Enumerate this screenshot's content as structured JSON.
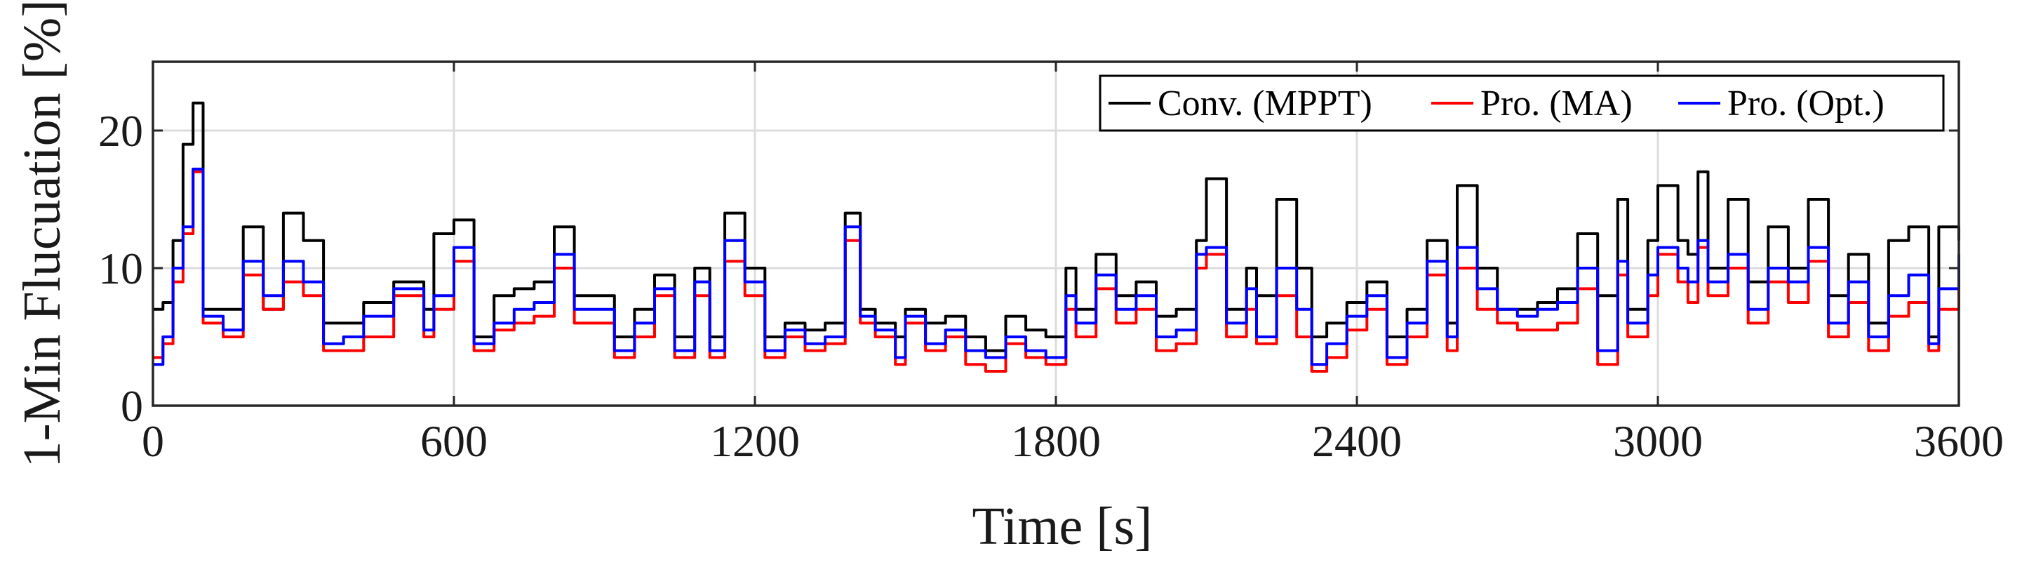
{
  "chart_data": {
    "type": "line",
    "title": "",
    "xlabel": "Time [s]",
    "ylabel": "1-Min Flucuation [%]",
    "xlim": [
      0,
      3600
    ],
    "ylim": [
      0,
      25
    ],
    "xticks": [
      0,
      600,
      1200,
      1800,
      2400,
      3000,
      3600
    ],
    "xtick_labels": [
      "0",
      "600",
      "1200",
      "1800",
      "2400",
      "3000",
      "3600"
    ],
    "yticks": [
      0,
      10,
      20
    ],
    "ytick_labels": [
      "0",
      "10",
      "20"
    ],
    "grid": true,
    "legend_position": "top-right",
    "x": [
      0,
      20,
      40,
      60,
      80,
      100,
      140,
      180,
      220,
      260,
      300,
      340,
      380,
      420,
      480,
      540,
      560,
      600,
      640,
      680,
      720,
      760,
      800,
      840,
      880,
      920,
      960,
      1000,
      1040,
      1080,
      1110,
      1140,
      1180,
      1220,
      1260,
      1300,
      1340,
      1380,
      1410,
      1440,
      1480,
      1500,
      1540,
      1580,
      1620,
      1660,
      1700,
      1740,
      1780,
      1820,
      1840,
      1880,
      1920,
      1960,
      2000,
      2040,
      2080,
      2100,
      2140,
      2180,
      2200,
      2240,
      2280,
      2310,
      2340,
      2380,
      2420,
      2460,
      2500,
      2540,
      2580,
      2600,
      2640,
      2680,
      2720,
      2760,
      2800,
      2840,
      2880,
      2920,
      2940,
      2980,
      3000,
      3040,
      3060,
      3080,
      3100,
      3140,
      3180,
      3220,
      3260,
      3300,
      3340,
      3380,
      3420,
      3460,
      3500,
      3540,
      3560,
      3600
    ],
    "series": [
      {
        "name": "Conv. (MPPT)",
        "color": "#000000",
        "values": [
          7,
          7.5,
          12,
          19,
          22,
          7,
          7,
          13,
          7,
          14,
          12,
          6,
          6,
          7.5,
          9,
          7,
          12.5,
          13.5,
          5,
          8,
          8.5,
          9,
          13,
          8,
          8,
          5,
          7,
          9.5,
          5,
          10,
          5,
          14,
          10,
          5,
          6,
          5.5,
          6,
          14,
          7,
          6,
          5,
          7,
          6,
          6.5,
          5,
          4,
          6.5,
          5.5,
          5,
          10,
          7,
          11,
          8,
          9,
          6.5,
          7,
          12,
          16.5,
          7,
          10,
          8,
          15,
          10,
          5,
          6,
          7.5,
          9,
          5,
          7,
          12,
          6,
          16,
          10,
          7,
          7,
          7.5,
          8.5,
          12.5,
          8,
          15,
          7,
          12,
          16,
          12,
          11,
          17,
          10,
          15,
          9,
          13,
          10,
          15,
          8,
          11,
          6,
          12,
          13,
          5,
          13,
          12
        ]
      },
      {
        "name": "Pro. (MA)",
        "color": "#ff0000",
        "values": [
          3.5,
          4.5,
          9,
          12.5,
          17,
          6,
          5,
          9.5,
          7,
          9,
          8,
          4,
          4,
          5,
          8,
          5,
          7,
          10.5,
          4,
          5.5,
          6,
          6.5,
          10,
          6,
          6,
          3.5,
          5,
          8,
          3.5,
          8,
          3.5,
          10.5,
          8,
          3.5,
          5,
          4,
          4.5,
          12,
          6,
          5,
          3,
          6,
          4,
          5,
          3,
          2.5,
          4.5,
          3.5,
          3,
          7,
          5,
          8.5,
          6,
          7,
          4,
          4.5,
          10,
          11,
          5,
          7,
          4.5,
          8,
          5,
          2.5,
          3.5,
          5.5,
          7,
          3,
          5,
          9.5,
          4,
          10,
          7,
          6,
          5.5,
          5.5,
          6,
          8.5,
          3,
          9.5,
          5,
          8,
          11,
          9,
          7.5,
          11.5,
          8,
          10,
          6,
          9,
          7.5,
          10.5,
          5,
          7.5,
          4,
          6.5,
          7.5,
          4,
          7,
          10
        ]
      },
      {
        "name": "Pro. (Opt.)",
        "color": "#0000ff",
        "values": [
          3,
          5,
          10,
          13,
          17.2,
          6.5,
          5.5,
          10.5,
          8,
          10.5,
          9,
          4.5,
          5,
          6.5,
          8.5,
          5.5,
          8,
          11.5,
          4.5,
          6,
          7,
          7.5,
          11,
          7,
          7,
          4,
          6,
          8.5,
          4,
          9,
          4,
          12,
          9,
          4,
          5.5,
          4.5,
          5,
          13,
          6.5,
          5.5,
          3.5,
          6.5,
          4.5,
          5.5,
          4,
          3.5,
          5,
          4,
          3.5,
          8,
          6,
          9.5,
          7,
          8,
          5,
          5.5,
          11,
          11.5,
          6,
          8.5,
          5,
          10,
          7,
          3,
          4.5,
          6.5,
          8,
          3.5,
          6,
          10.5,
          5,
          11.5,
          8.5,
          7,
          6.5,
          7,
          7.5,
          10,
          4,
          10.5,
          6,
          9.5,
          11.5,
          10,
          9,
          12,
          9,
          11,
          7,
          10,
          9,
          11.5,
          6,
          9,
          5,
          8,
          9.5,
          4.5,
          8.5,
          11
        ]
      }
    ]
  }
}
